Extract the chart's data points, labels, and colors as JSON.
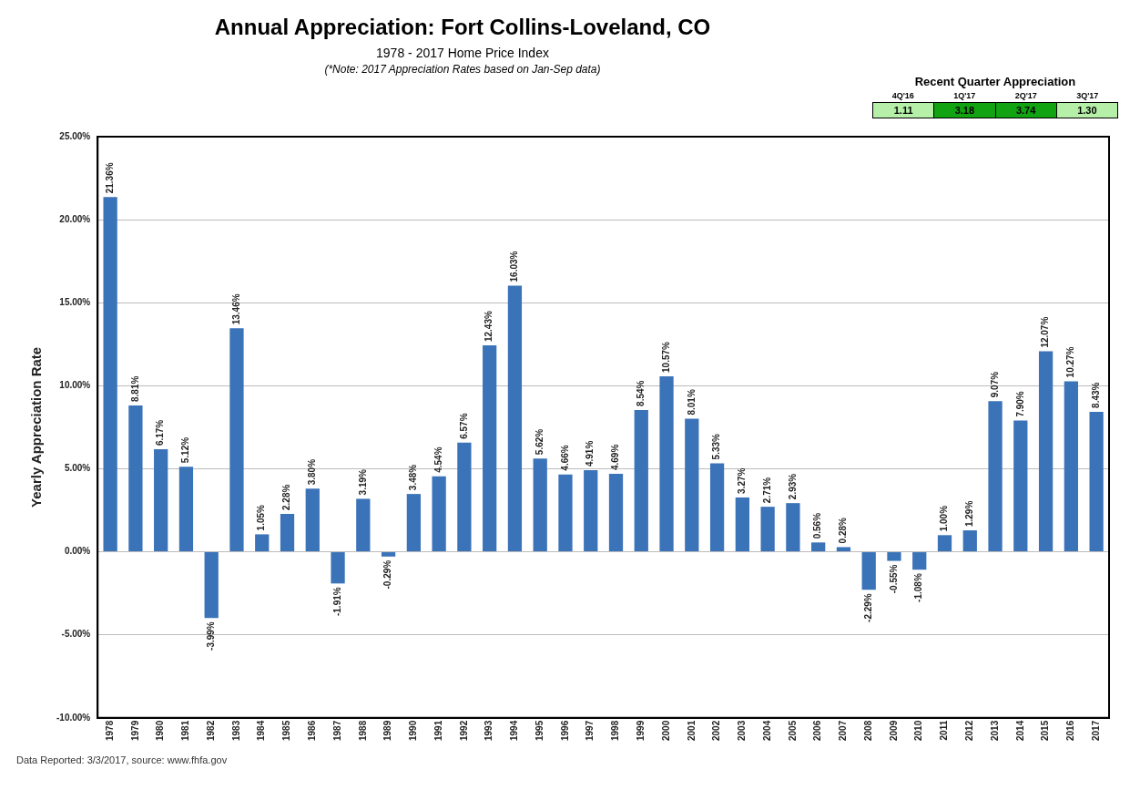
{
  "chart_data": [
    {
      "type": "bar",
      "title": "Annual Appreciation: Fort Collins-Loveland, CO",
      "subtitle": "1978 - 2017 Home Price Index",
      "ylabel": "Yearly Appreciation Rate",
      "annotations": [
        "(*Note: 2017 Appreciation Rates based on Jan-Sep data)",
        "Data Reported: 3/3/2017, source: www.fhfa.gov"
      ],
      "categories": [
        "1978",
        "1979",
        "1980",
        "1981",
        "1982",
        "1983",
        "1984",
        "1985",
        "1986",
        "1987",
        "1988",
        "1989",
        "1990",
        "1991",
        "1992",
        "1993",
        "1994",
        "1995",
        "1996",
        "1997",
        "1998",
        "1999",
        "2000",
        "2001",
        "2002",
        "2003",
        "2004",
        "2005",
        "2006",
        "2007",
        "2008",
        "2009",
        "2010",
        "2011",
        "2012",
        "2013",
        "2014",
        "2015",
        "2016",
        "2017"
      ],
      "values": [
        21.36,
        8.81,
        6.17,
        5.12,
        -3.99,
        13.46,
        1.05,
        2.28,
        3.8,
        -1.91,
        3.19,
        -0.29,
        3.48,
        4.54,
        6.57,
        12.43,
        16.03,
        5.62,
        4.66,
        4.91,
        4.69,
        8.54,
        10.57,
        8.01,
        5.33,
        3.27,
        2.71,
        2.93,
        0.56,
        0.28,
        -2.29,
        -0.55,
        -1.08,
        1.0,
        1.29,
        9.07,
        7.9,
        12.07,
        10.27,
        8.43
      ],
      "value_labels": [
        "21.36%",
        "8.81%",
        "6.17%",
        "5.12%",
        "-3.99%",
        "13.46%",
        "1.05%",
        "2.28%",
        "3.80%",
        "-1.91%",
        "3.19%",
        "-0.29%",
        "3.48%",
        "4.54%",
        "6.57%",
        "12.43%",
        "16.03%",
        "5.62%",
        "4.66%",
        "4.91%",
        "4.69%",
        "8.54%",
        "10.57%",
        "8.01%",
        "5.33%",
        "3.27%",
        "2.71%",
        "2.93%",
        "0.56%",
        "0.28%",
        "-2.29%",
        "-0.55%",
        "-1.08%",
        "1.00%",
        "1.29%",
        "9.07%",
        "7.90%",
        "12.07%",
        "10.27%",
        "8.43%"
      ],
      "color": "#3b73b9",
      "ylim": [
        -10,
        25
      ],
      "yticks": [
        {
          "value": -10,
          "label": "-10.00%"
        },
        {
          "value": -5,
          "label": "-5.00%"
        },
        {
          "value": 0,
          "label": "0.00%"
        },
        {
          "value": 5,
          "label": "5.00%"
        },
        {
          "value": 10,
          "label": "10.00%"
        },
        {
          "value": 15,
          "label": "15.00%"
        },
        {
          "value": 20,
          "label": "20.00%"
        },
        {
          "value": 25,
          "label": "25.00%"
        }
      ],
      "grid": "y",
      "legend": false
    },
    {
      "type": "other",
      "title": "Recent Quarter Appreciation",
      "categories": [
        "4Q'16",
        "1Q'17",
        "2Q'17",
        "3Q'17"
      ],
      "values": [
        1.11,
        3.18,
        3.74,
        1.3
      ],
      "value_labels": [
        "1.11",
        "3.18",
        "3.74",
        "1.30"
      ],
      "colors": [
        "#b6f0a8",
        "#12a312",
        "#12a312",
        "#b6f0a8"
      ]
    }
  ]
}
